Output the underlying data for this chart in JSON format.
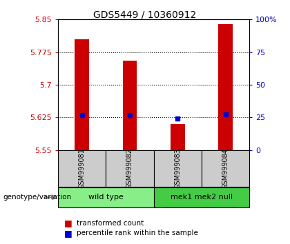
{
  "title": "GDS5449 / 10360912",
  "samples": [
    "GSM999081",
    "GSM999082",
    "GSM999083",
    "GSM999084"
  ],
  "bar_values": [
    5.805,
    5.755,
    5.61,
    5.84
  ],
  "percentile_values": [
    5.63,
    5.63,
    5.622,
    5.632
  ],
  "bar_bottom": 5.55,
  "ylim": [
    5.55,
    5.85
  ],
  "yticks_left": [
    5.55,
    5.625,
    5.7,
    5.775,
    5.85
  ],
  "yticks_right": [
    0,
    25,
    50,
    75,
    100
  ],
  "bar_color": "#cc0000",
  "percentile_color": "#0000cc",
  "groups": [
    {
      "label": "wild type",
      "samples": [
        0,
        1
      ],
      "color": "#88ee88"
    },
    {
      "label": "mek1 mek2 null",
      "samples": [
        2,
        3
      ],
      "color": "#44cc44"
    }
  ],
  "genotype_label": "genotype/variation",
  "legend_bar_label": "transformed count",
  "legend_pct_label": "percentile rank within the sample",
  "background_color": "#ffffff",
  "plot_bg": "#ffffff",
  "sample_area_color": "#cccccc",
  "bar_width": 0.3
}
